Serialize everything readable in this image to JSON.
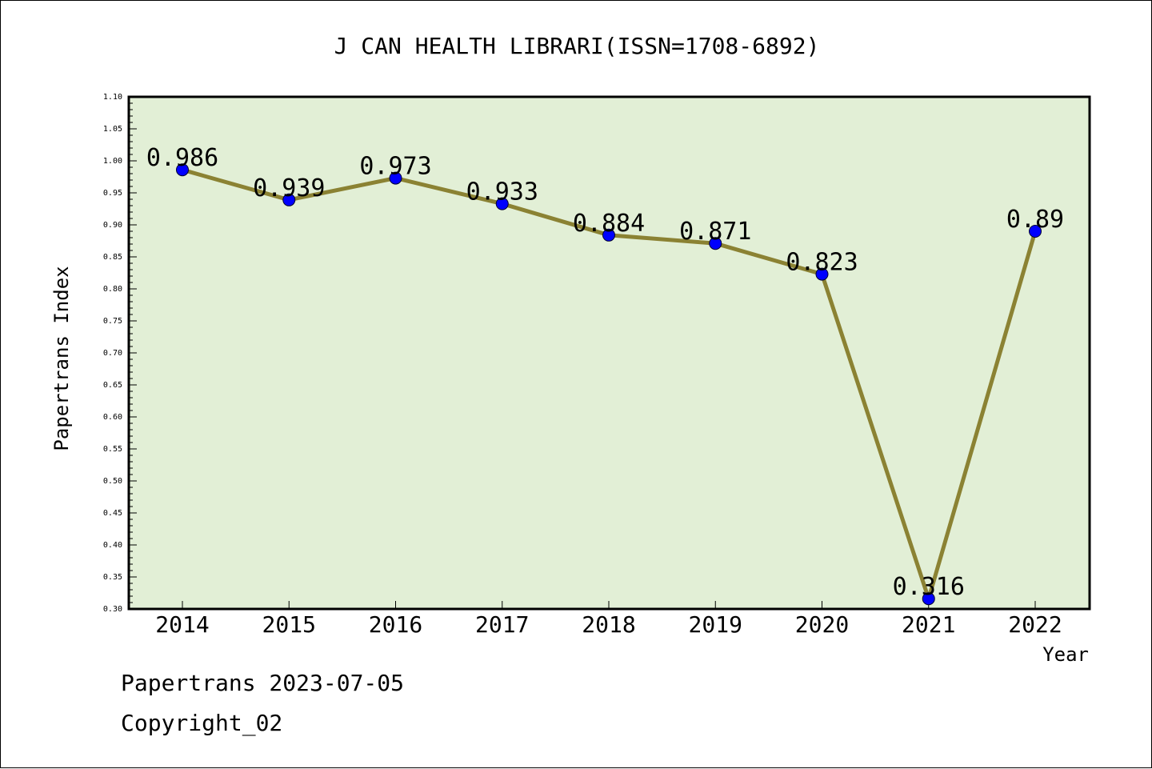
{
  "chart_data": {
    "type": "line",
    "title": "J CAN HEALTH LIBRARI(ISSN=1708-6892)",
    "xlabel": "Year",
    "ylabel": "Papertrans Index",
    "categories": [
      "2014",
      "2015",
      "2016",
      "2017",
      "2018",
      "2019",
      "2020",
      "2021",
      "2022"
    ],
    "values": [
      0.986,
      0.939,
      0.973,
      0.933,
      0.884,
      0.871,
      0.823,
      0.316,
      0.89
    ],
    "data_labels": [
      "0.986",
      "0.939",
      "0.973",
      "0.933",
      "0.884",
      "0.871",
      "0.823",
      "0.316",
      "0.89"
    ],
    "ylim": [
      0.3,
      1.1
    ],
    "ytick_step": 0.05,
    "ytick_labels": [
      "0.30",
      "0.35",
      "0.40",
      "0.45",
      "0.50",
      "0.55",
      "0.60",
      "0.65",
      "0.70",
      "0.75",
      "0.80",
      "0.85",
      "0.90",
      "0.95",
      "1.00",
      "1.05",
      "1.10"
    ],
    "grid": false,
    "legend": "none",
    "colors": {
      "plot_background": "#e2efd6",
      "line": "#8b8233",
      "marker": "#0000ff",
      "axis": "#000000"
    }
  },
  "footer": {
    "date": "Papertrans 2023-07-05",
    "copyright": "Copyright_02"
  }
}
